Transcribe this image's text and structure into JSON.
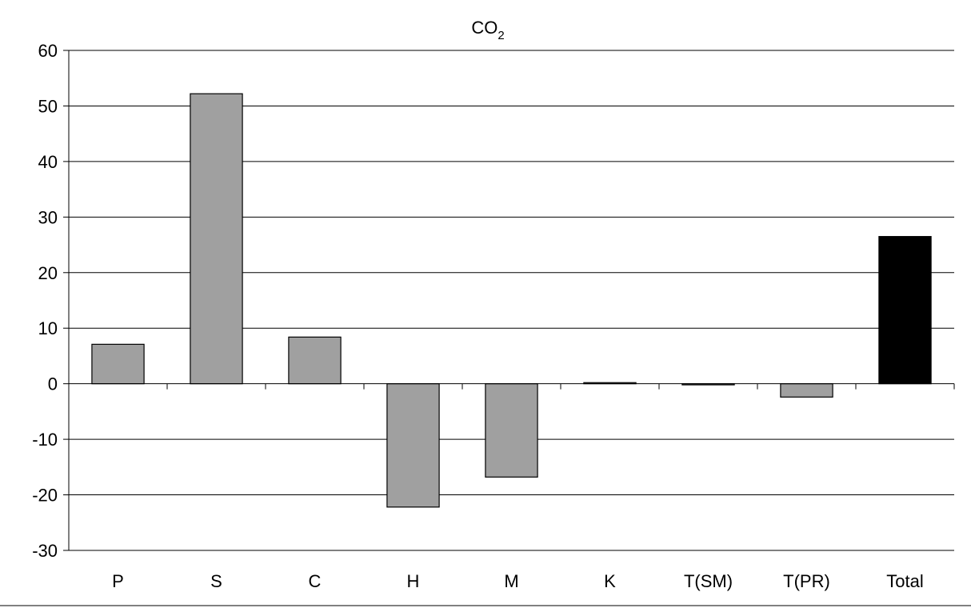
{
  "chart_data": {
    "type": "bar",
    "title": "CO",
    "title_subscript": "2",
    "categories": [
      "P",
      "S",
      "C",
      "H",
      "M",
      "K",
      "T(SM)",
      "T(PR)",
      "Total"
    ],
    "values": [
      7.1,
      52.2,
      8.4,
      -22.2,
      -16.8,
      0.2,
      -0.2,
      -2.4,
      26.5
    ],
    "bar_colors": [
      "#a0a0a0",
      "#a0a0a0",
      "#a0a0a0",
      "#a0a0a0",
      "#a0a0a0",
      "#a0a0a0",
      "#a0a0a0",
      "#a0a0a0",
      "#000000"
    ],
    "ylim": [
      -30,
      60
    ],
    "yticks": [
      60,
      50,
      40,
      30,
      20,
      10,
      0,
      -10,
      -20,
      -30
    ],
    "ytick_labels": [
      "60",
      "50",
      "40",
      "30",
      "20",
      "10",
      "0",
      "-10",
      "-20",
      "-30"
    ],
    "grid": true,
    "xlabel": "",
    "ylabel": ""
  }
}
